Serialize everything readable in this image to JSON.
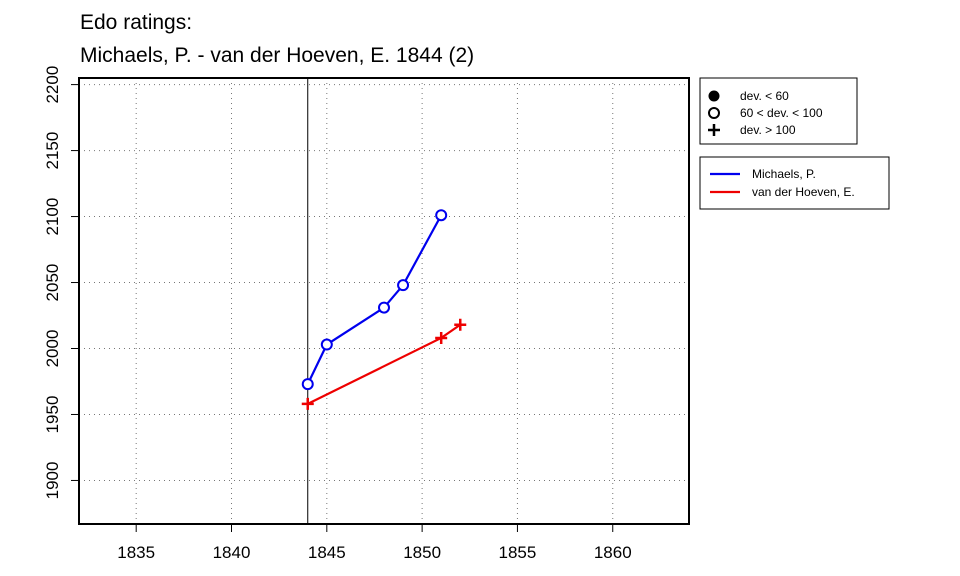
{
  "chart_data": {
    "type": "line",
    "title_lines": [
      "Edo ratings:",
      "Michaels, P. - van der Hoeven, E. 1844 (2)"
    ],
    "xlabel": "",
    "ylabel": "",
    "xlim": [
      1832,
      1864
    ],
    "ylim": [
      1867,
      2205
    ],
    "x_ticks": [
      1835,
      1840,
      1845,
      1850,
      1855,
      1860
    ],
    "y_ticks": [
      1900,
      1950,
      2000,
      2050,
      2100,
      2150,
      2200
    ],
    "grid": true,
    "reference_line_x": 1844,
    "series": [
      {
        "name": "Michaels, P.",
        "color": "#0000ee",
        "points": [
          {
            "x": 1844,
            "y": 1973,
            "marker": "open-circle"
          },
          {
            "x": 1845,
            "y": 2003,
            "marker": "open-circle"
          },
          {
            "x": 1848,
            "y": 2031,
            "marker": "open-circle"
          },
          {
            "x": 1849,
            "y": 2048,
            "marker": "open-circle"
          },
          {
            "x": 1851,
            "y": 2101,
            "marker": "open-circle"
          }
        ]
      },
      {
        "name": "van der Hoeven, E.",
        "color": "#ee0000",
        "points": [
          {
            "x": 1844,
            "y": 1958,
            "marker": "plus"
          },
          {
            "x": 1851,
            "y": 2008,
            "marker": "plus"
          },
          {
            "x": 1852,
            "y": 2018,
            "marker": "plus"
          }
        ]
      }
    ],
    "marker_legend": [
      {
        "marker": "filled-circle",
        "label": "dev. < 60"
      },
      {
        "marker": "open-circle",
        "label": "60 < dev. < 100"
      },
      {
        "marker": "plus",
        "label": "dev. > 100"
      }
    ],
    "legend_placement": "right"
  }
}
